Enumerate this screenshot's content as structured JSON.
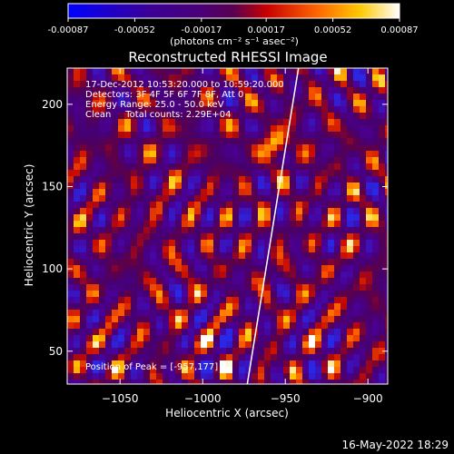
{
  "colorbar": {
    "tick_labels": [
      "-0.00087",
      "-0.00052",
      "-0.00017",
      "0.00017",
      "0.00052",
      "0.00087"
    ],
    "range": [
      -0.00087,
      0.00087
    ],
    "unit_label": "(photons cm⁻² s⁻¹ asec⁻²)"
  },
  "chart_data": {
    "type": "heatmap",
    "title": "Reconstructed RHESSI Image",
    "xlabel": "Heliocentric X (arcsec)",
    "ylabel": "Heliocentric Y (arcsec)",
    "xlim": [
      -1082,
      -888
    ],
    "ylim": [
      30,
      222
    ],
    "x_ticks": [
      -1050,
      -1000,
      -950,
      -900
    ],
    "y_ticks": [
      50,
      100,
      150,
      200
    ],
    "x_tick_labels": [
      "−1050",
      "−1000",
      "−950",
      "−900"
    ],
    "y_tick_labels": [
      "50",
      "100",
      "150",
      "200"
    ],
    "limb_line": [
      [
        -973,
        30
      ],
      [
        -942,
        222
      ]
    ],
    "peak": {
      "x": -957,
      "y": 177
    },
    "annotations": {
      "time": "17-Dec-2012 10:53:20.000 to 10:59:20.000",
      "detectors": "Detectors: 3F 4F 5F 6F 7F 8F, Att 0",
      "energy": "Energy Range: 25.0 - 50.0 keV",
      "clean": "Clean     Total counts: 2.29E+04",
      "peak_text": "Position of Peak = [-957,177]"
    }
  },
  "footer": {
    "date": "16-May-2022 18:29"
  }
}
